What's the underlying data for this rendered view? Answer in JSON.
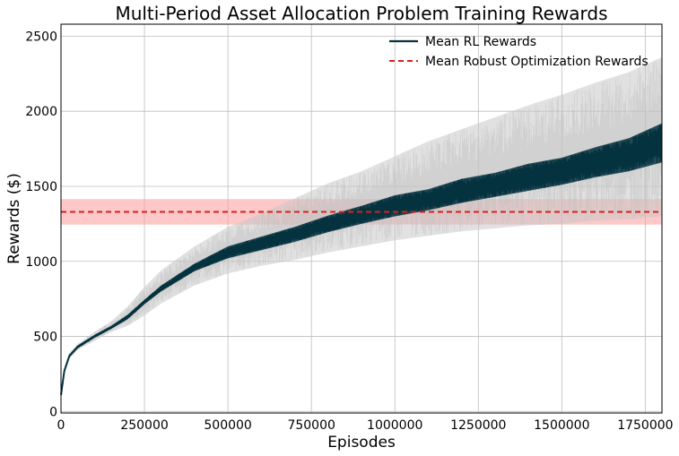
{
  "chart_data": {
    "type": "line",
    "title": "Multi-Period Asset Allocation Problem Training Rewards",
    "xlabel": "Episodes",
    "ylabel": "Rewards ($)",
    "xlim": [
      0,
      1800000
    ],
    "ylim": [
      -10,
      2580
    ],
    "xticks": [
      0,
      250000,
      500000,
      750000,
      1000000,
      1250000,
      1500000,
      1750000
    ],
    "yticks": [
      0,
      500,
      1000,
      1500,
      2000,
      2500
    ],
    "grid": true,
    "legend_position": "top-right",
    "series": [
      {
        "name": "Mean RL Rewards",
        "color": "#05323f",
        "x": [
          0,
          10000,
          25000,
          50000,
          100000,
          150000,
          200000,
          250000,
          300000,
          400000,
          500000,
          600000,
          700000,
          800000,
          900000,
          1000000,
          1100000,
          1200000,
          1300000,
          1400000,
          1500000,
          1600000,
          1700000,
          1800000
        ],
        "mean": [
          110,
          270,
          370,
          430,
          500,
          560,
          630,
          730,
          820,
          960,
          1060,
          1120,
          1180,
          1250,
          1310,
          1370,
          1410,
          1470,
          1510,
          1560,
          1600,
          1660,
          1710,
          1790
        ],
        "band_low": [
          100,
          260,
          360,
          420,
          490,
          550,
          615,
          715,
          800,
          935,
          1020,
          1075,
          1130,
          1195,
          1250,
          1300,
          1340,
          1390,
          1430,
          1470,
          1510,
          1560,
          1600,
          1660
        ],
        "band_high": [
          120,
          280,
          380,
          440,
          510,
          570,
          645,
          745,
          840,
          985,
          1100,
          1165,
          1230,
          1305,
          1370,
          1440,
          1480,
          1550,
          1590,
          1650,
          1690,
          1760,
          1820,
          1920
        ],
        "std_low": [
          100,
          250,
          350,
          410,
          470,
          530,
          570,
          640,
          720,
          840,
          920,
          970,
          1010,
          1060,
          1100,
          1140,
          1170,
          1200,
          1220,
          1240,
          1250,
          1270,
          1280,
          1300
        ],
        "std_high": [
          120,
          290,
          390,
          450,
          530,
          600,
          700,
          830,
          940,
          1100,
          1230,
          1320,
          1420,
          1520,
          1600,
          1700,
          1800,
          1880,
          1960,
          2040,
          2110,
          2190,
          2260,
          2360
        ]
      },
      {
        "name": "Mean Robust Optimization Rewards",
        "color": "#d62020",
        "value": 1330,
        "band": [
          1245,
          1415
        ]
      }
    ]
  }
}
